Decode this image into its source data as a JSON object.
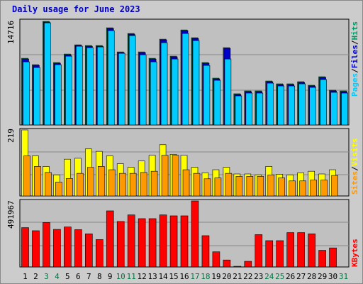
{
  "title": "Daily usage for June 2023",
  "colors": {
    "background": "#cccccc",
    "panel": "#c0c0c0",
    "grid": "#888888",
    "hits": "#009966",
    "files": "#0000cc",
    "pages": "#00ccff",
    "visits": "#ffff00",
    "sites": "#ff9900",
    "kbytes": "#ff0000",
    "title": "#0000cc",
    "weekday_label": "#000000",
    "weekend_label": "#007744"
  },
  "chart_data": [
    {
      "type": "bar",
      "name": "hits-files-pages",
      "title": "Daily usage for June 2023",
      "max_label": "14716",
      "ymax": 14716,
      "legend": [
        "Pages",
        "/",
        "Files",
        "/",
        "Hits"
      ],
      "categories": [
        "1",
        "2",
        "3",
        "4",
        "5",
        "6",
        "7",
        "8",
        "9",
        "10",
        "11",
        "12",
        "13",
        "14",
        "15",
        "16",
        "17",
        "18",
        "19",
        "20",
        "21",
        "22",
        "23",
        "24",
        "25",
        "26",
        "27",
        "28",
        "29",
        "30",
        "31"
      ],
      "series": [
        {
          "name": "Hits",
          "values": [
            9400,
            8500,
            14600,
            8800,
            10000,
            11300,
            11200,
            11200,
            13700,
            10300,
            12900,
            10300,
            9400,
            12100,
            9700,
            13400,
            12300,
            8800,
            6600,
            10900,
            4400,
            4800,
            4800,
            6200,
            5800,
            5800,
            6100,
            5600,
            6800,
            4900,
            4800
          ]
        },
        {
          "name": "Files",
          "values": [
            9400,
            8500,
            14600,
            8800,
            10000,
            11300,
            11200,
            11200,
            13700,
            10300,
            12900,
            10300,
            9400,
            12100,
            9700,
            13400,
            12300,
            8800,
            6600,
            10900,
            4400,
            4800,
            4800,
            6200,
            5800,
            5800,
            6100,
            5600,
            6800,
            4900,
            4800
          ]
        },
        {
          "name": "Pages",
          "values": [
            9100,
            8300,
            14600,
            8700,
            9900,
            11300,
            11100,
            11200,
            13500,
            10300,
            12800,
            10100,
            9100,
            11800,
            9500,
            13100,
            12100,
            8600,
            6500,
            9500,
            4300,
            4700,
            4700,
            6100,
            5700,
            5700,
            6000,
            5500,
            6600,
            4800,
            4700
          ]
        }
      ],
      "weekend_days": [
        3,
        4,
        10,
        11,
        17,
        18,
        24,
        25,
        31
      ]
    },
    {
      "type": "bar",
      "name": "visits-sites",
      "max_label": "219",
      "ymax": 219,
      "legend": [
        "Sites",
        "/",
        "Visits"
      ],
      "categories": [
        "1",
        "2",
        "3",
        "4",
        "5",
        "6",
        "7",
        "8",
        "9",
        "10",
        "11",
        "12",
        "13",
        "14",
        "15",
        "16",
        "17",
        "18",
        "19",
        "20",
        "21",
        "22",
        "23",
        "24",
        "25",
        "26",
        "27",
        "28",
        "29",
        "30",
        "31"
      ],
      "series": [
        {
          "name": "Visits",
          "values": [
            219,
            133,
            98,
            70,
            122,
            125,
            156,
            148,
            133,
            107,
            95,
            116,
            135,
            170,
            138,
            135,
            95,
            77,
            87,
            95,
            73,
            73,
            70,
            98,
            72,
            70,
            77,
            82,
            73,
            87,
            0
          ]
        },
        {
          "name": "Sites",
          "values": [
            133,
            98,
            78,
            46,
            58,
            75,
            95,
            98,
            87,
            75,
            75,
            78,
            82,
            135,
            135,
            87,
            75,
            57,
            60,
            75,
            65,
            65,
            65,
            70,
            60,
            50,
            50,
            53,
            53,
            68,
            0
          ]
        }
      ]
    },
    {
      "type": "bar",
      "name": "kbytes",
      "max_label": "491967",
      "ymax": 491967,
      "legend": [
        "KBytes"
      ],
      "categories": [
        "1",
        "2",
        "3",
        "4",
        "5",
        "6",
        "7",
        "8",
        "9",
        "10",
        "11",
        "12",
        "13",
        "14",
        "15",
        "16",
        "17",
        "18",
        "19",
        "20",
        "21",
        "22",
        "23",
        "24",
        "25",
        "26",
        "27",
        "28",
        "29",
        "30",
        "31"
      ],
      "series": [
        {
          "name": "KBytes",
          "values": [
            293000,
            270000,
            331000,
            280000,
            298000,
            278000,
            247000,
            204000,
            418000,
            339000,
            388000,
            360000,
            360000,
            388000,
            381000,
            381000,
            491967,
            233000,
            113000,
            52000,
            5000,
            42000,
            241000,
            196000,
            196000,
            256000,
            256000,
            247000,
            124000,
            142000,
            0
          ]
        }
      ]
    }
  ]
}
